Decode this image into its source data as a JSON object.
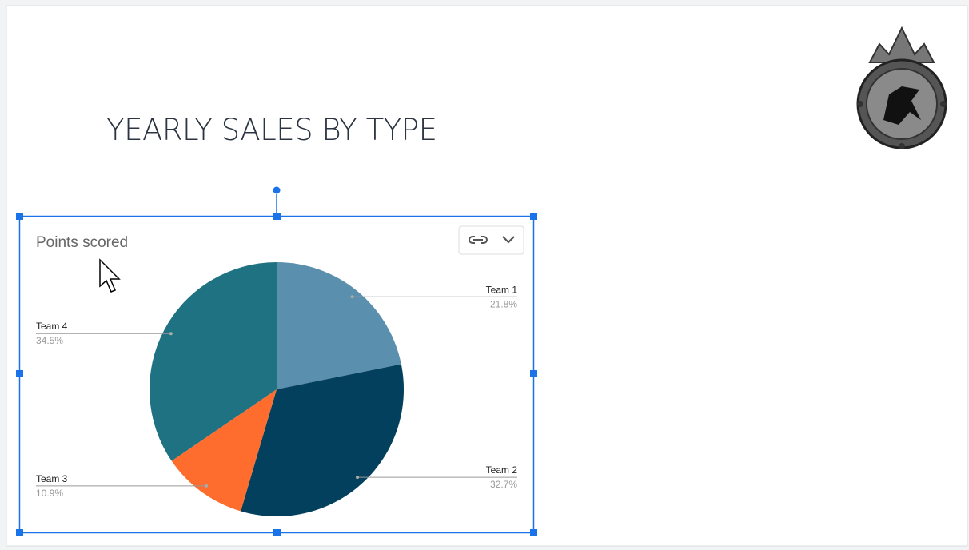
{
  "slide": {
    "title": "YEARLY SALES BY TYPE"
  },
  "chart_data": {
    "type": "pie",
    "title": "Points scored",
    "categories": [
      "Team 1",
      "Team 2",
      "Team 3",
      "Team 4"
    ],
    "values": [
      21.8,
      32.7,
      10.9,
      34.5
    ],
    "value_labels": [
      "21.8%",
      "32.7%",
      "10.9%",
      "34.5%"
    ],
    "colors": [
      "#5a8fae",
      "#03405e",
      "#ff6d2e",
      "#1e7282"
    ]
  }
}
